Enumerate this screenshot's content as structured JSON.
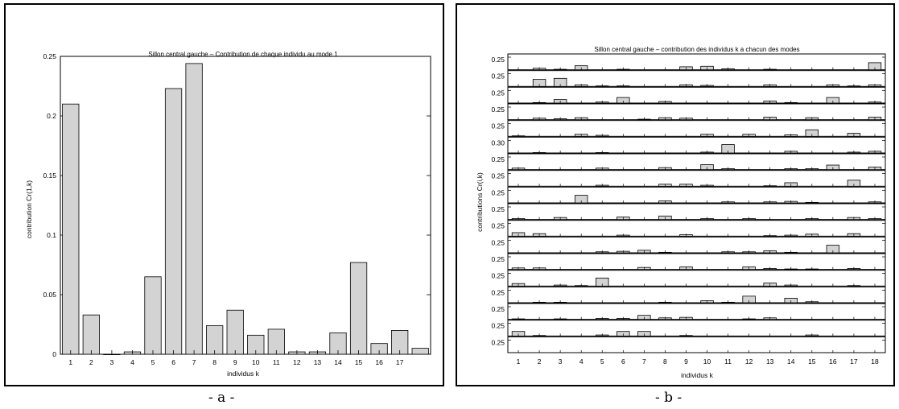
{
  "captions": {
    "a": "- a -",
    "b": "- b -"
  },
  "chart_data": [
    {
      "type": "bar",
      "title": "Sillon central gauche – Contribution de chaque individu au mode 1",
      "xlabel": "individus k",
      "ylabel": "contribution Cr(1,k)",
      "ylim": [
        0,
        0.25
      ],
      "yticks": [
        "0",
        "0.05",
        "0.1",
        "0.15",
        "0.2",
        "0.25"
      ],
      "xticks": [
        "1",
        "2",
        "3",
        "4",
        "5",
        "6",
        "7",
        "8",
        "9",
        "10",
        "11",
        "12",
        "13",
        "14",
        "15",
        "16",
        "17"
      ],
      "categories": [
        "1",
        "2",
        "3",
        "4",
        "5",
        "6",
        "7",
        "8",
        "9",
        "10",
        "11",
        "12",
        "13",
        "14",
        "15",
        "16",
        "17",
        "18"
      ],
      "values": [
        0.21,
        0.033,
        0.0,
        0.002,
        0.065,
        0.223,
        0.244,
        0.024,
        0.037,
        0.016,
        0.021,
        0.002,
        0.002,
        0.018,
        0.077,
        0.009,
        0.02,
        0.005
      ],
      "grid": false,
      "bar_color": "#d3d3d3"
    },
    {
      "type": "bar",
      "title": "Sillon central gauche – contribution des individus k a chacun des modes",
      "xlabel": "individus k",
      "ylabel": "contributions Cr(i,k)",
      "grid": false,
      "bar_color": "#d3d3d3",
      "categories": [
        "1",
        "2",
        "3",
        "4",
        "5",
        "6",
        "7",
        "8",
        "9",
        "10",
        "11",
        "12",
        "13",
        "14",
        "15",
        "16",
        "17",
        "18"
      ],
      "row_ylim_labels": [
        "0.25",
        "0.25",
        "0.25",
        "0.25",
        "0.25",
        "0.30",
        "0.25",
        "0.25",
        "0.25",
        "0.25",
        "0.25",
        "0.25",
        "0.25",
        "0.25",
        "0.25",
        "0.25",
        "0.25",
        "0.25"
      ],
      "row_ylim": [
        0.25,
        0.25,
        0.25,
        0.25,
        0.25,
        0.3,
        0.25,
        0.25,
        0.25,
        0.25,
        0.25,
        0.25,
        0.25,
        0.25,
        0.25,
        0.25,
        0.25,
        0.25
      ],
      "series": [
        {
          "values": [
            0.0,
            0.03,
            0.01,
            0.08,
            0.0,
            0.01,
            0.0,
            0.0,
            0.06,
            0.07,
            0.02,
            0.0,
            0.01,
            0.0,
            0.0,
            0.0,
            0.0,
            0.14
          ]
        },
        {
          "values": [
            0.0,
            0.14,
            0.16,
            0.03,
            0.01,
            0.01,
            0.0,
            0.0,
            0.03,
            0.02,
            0.0,
            0.0,
            0.03,
            0.0,
            0.0,
            0.03,
            0.01,
            0.03
          ]
        },
        {
          "values": [
            0.0,
            0.01,
            0.07,
            0.0,
            0.02,
            0.11,
            0.0,
            0.03,
            0.0,
            0.0,
            0.0,
            0.0,
            0.04,
            0.01,
            0.0,
            0.11,
            0.0,
            0.02
          ]
        },
        {
          "values": [
            0.0,
            0.03,
            0.02,
            0.04,
            0.0,
            0.0,
            0.01,
            0.04,
            0.03,
            0.0,
            0.0,
            0.0,
            0.05,
            0.0,
            0.04,
            0.0,
            0.0,
            0.05
          ]
        },
        {
          "values": [
            0.01,
            0.0,
            0.0,
            0.04,
            0.02,
            0.0,
            0.0,
            0.0,
            0.0,
            0.04,
            0.0,
            0.04,
            0.0,
            0.03,
            0.13,
            0.0,
            0.06,
            0.0
          ]
        },
        {
          "values": [
            0.0,
            0.01,
            0.0,
            0.0,
            0.01,
            0.0,
            0.0,
            0.0,
            0.0,
            0.02,
            0.2,
            0.0,
            0.0,
            0.04,
            0.0,
            0.0,
            0.02,
            0.04
          ]
        },
        {
          "values": [
            0.03,
            0.0,
            0.0,
            0.0,
            0.03,
            0.0,
            0.0,
            0.04,
            0.0,
            0.1,
            0.02,
            0.0,
            0.0,
            0.02,
            0.02,
            0.09,
            0.0,
            0.05
          ]
        },
        {
          "values": [
            0.0,
            0.0,
            0.0,
            0.0,
            0.02,
            0.0,
            0.0,
            0.04,
            0.04,
            0.02,
            0.0,
            0.0,
            0.01,
            0.07,
            0.0,
            0.0,
            0.12,
            0.0
          ]
        },
        {
          "values": [
            0.0,
            0.0,
            0.0,
            0.15,
            0.0,
            0.0,
            0.0,
            0.04,
            0.0,
            0.0,
            0.02,
            0.0,
            0.02,
            0.03,
            0.01,
            0.0,
            0.0,
            0.02
          ]
        },
        {
          "values": [
            0.02,
            0.0,
            0.04,
            0.0,
            0.0,
            0.05,
            0.0,
            0.07,
            0.0,
            0.02,
            0.0,
            0.02,
            0.0,
            0.0,
            0.02,
            0.0,
            0.04,
            0.02
          ]
        },
        {
          "values": [
            0.07,
            0.05,
            0.0,
            0.0,
            0.0,
            0.02,
            0.0,
            0.0,
            0.03,
            0.0,
            0.0,
            0.0,
            0.01,
            0.02,
            0.04,
            0.0,
            0.05,
            0.0
          ]
        },
        {
          "values": [
            0.0,
            0.0,
            0.0,
            0.0,
            0.02,
            0.03,
            0.05,
            0.01,
            0.0,
            0.0,
            0.02,
            0.02,
            0.04,
            0.01,
            0.0,
            0.15,
            0.0,
            0.0
          ]
        },
        {
          "values": [
            0.03,
            0.03,
            0.0,
            0.0,
            0.0,
            0.0,
            0.04,
            0.0,
            0.05,
            0.0,
            0.0,
            0.05,
            0.02,
            0.01,
            0.01,
            0.0,
            0.02,
            0.0
          ]
        },
        {
          "values": [
            0.05,
            0.0,
            0.02,
            0.01,
            0.16,
            0.0,
            0.0,
            0.0,
            0.0,
            0.0,
            0.0,
            0.0,
            0.06,
            0.02,
            0.0,
            0.0,
            0.01,
            0.0
          ]
        },
        {
          "values": [
            0.0,
            0.01,
            0.01,
            0.0,
            0.0,
            0.0,
            0.0,
            0.01,
            0.0,
            0.04,
            0.01,
            0.13,
            0.0,
            0.09,
            0.02,
            0.0,
            0.0,
            0.0
          ]
        },
        {
          "values": [
            0.01,
            0.0,
            0.01,
            0.0,
            0.02,
            0.02,
            0.08,
            0.03,
            0.04,
            0.0,
            0.0,
            0.01,
            0.03,
            0.0,
            0.0,
            0.0,
            0.0,
            0.0
          ]
        },
        {
          "values": [
            0.09,
            0.01,
            0.0,
            0.0,
            0.02,
            0.09,
            0.09,
            0.0,
            0.01,
            0.0,
            0.0,
            0.0,
            0.0,
            0.0,
            0.02,
            0.0,
            0.0,
            0.0
          ]
        },
        {
          "values": [
            0.0,
            0.0,
            0.0,
            0.0,
            0.0,
            0.0,
            0.0,
            0.0,
            0.0,
            0.0,
            0.0,
            0.0,
            0.0,
            0.0,
            0.0,
            0.0,
            0.0,
            0.0
          ]
        }
      ]
    }
  ]
}
